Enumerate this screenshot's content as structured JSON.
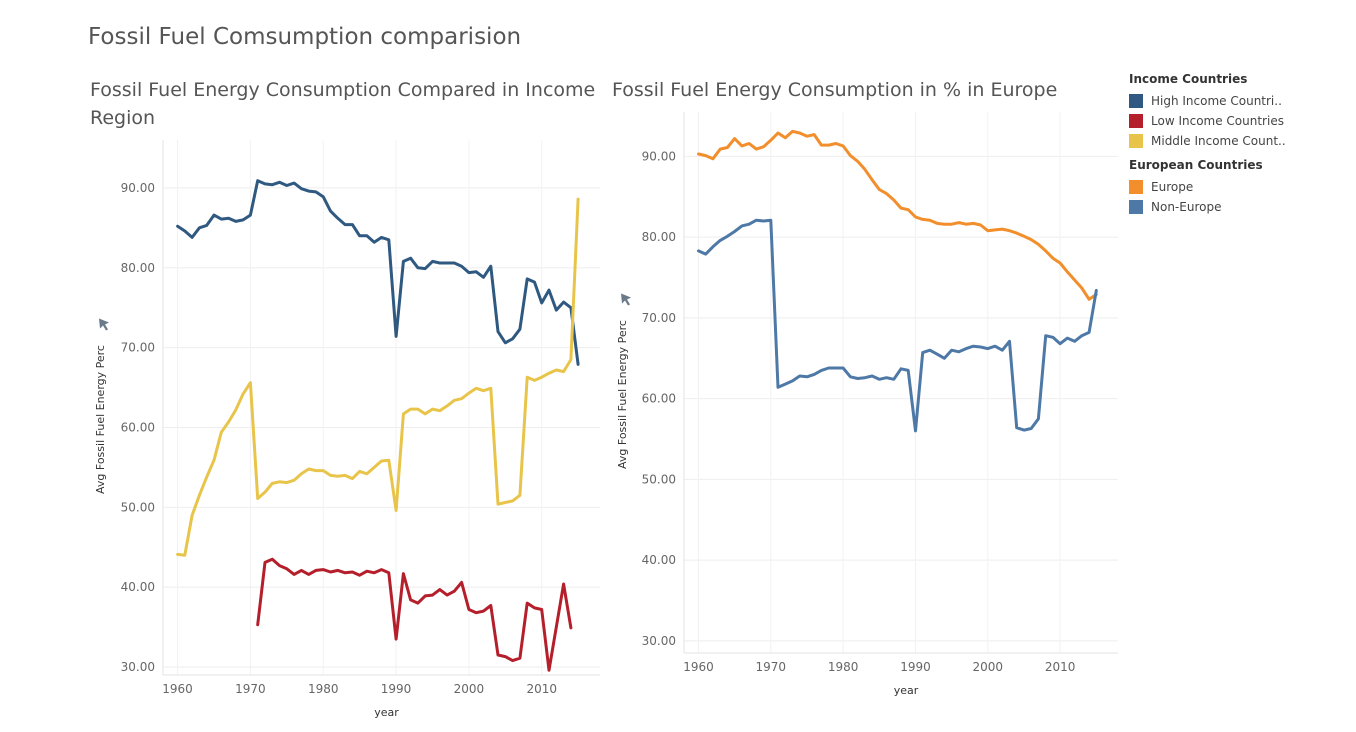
{
  "dashboard_title": "Fossil Fuel Comsumption comparision",
  "legend": {
    "income_title": "Income Countries",
    "income_items": [
      {
        "label": "High Income Countri..",
        "color": "#2f5980"
      },
      {
        "label": "Low Income Countries",
        "color": "#b41f2b"
      },
      {
        "label": "Middle Income Count..",
        "color": "#e8c54a"
      }
    ],
    "europe_title": "European Countries",
    "europe_items": [
      {
        "label": "Europe",
        "color": "#f28e2b"
      },
      {
        "label": "Non-Europe",
        "color": "#4e79a7"
      }
    ]
  },
  "chart_data": [
    {
      "type": "line",
      "title": "Fossil Fuel Energy Consumption Compared in Income Region",
      "xlabel": "year",
      "ylabel": "Avg Fossil Fuel Energy Perc",
      "xlim": [
        1958,
        2018
      ],
      "ylim": [
        29,
        96
      ],
      "xticks": [
        1960,
        1970,
        1980,
        1990,
        2000,
        2010
      ],
      "yticks": [
        30,
        40,
        50,
        60,
        70,
        80,
        90
      ],
      "ytick_labels": [
        "30.00",
        "40.00",
        "50.00",
        "60.00",
        "70.00",
        "80.00",
        "90.00"
      ],
      "grid": true,
      "series": [
        {
          "name": "High Income Countri..",
          "color": "#2f5980",
          "x": [
            1960,
            1961,
            1962,
            1963,
            1964,
            1965,
            1966,
            1967,
            1968,
            1969,
            1970,
            1971,
            1972,
            1973,
            1974,
            1975,
            1976,
            1977,
            1978,
            1979,
            1980,
            1981,
            1982,
            1983,
            1984,
            1985,
            1986,
            1987,
            1988,
            1989,
            1990,
            1991,
            1992,
            1993,
            1994,
            1995,
            1996,
            1997,
            1998,
            1999,
            2000,
            2001,
            2002,
            2003,
            2004,
            2005,
            2006,
            2007,
            2008,
            2009,
            2010,
            2011,
            2012,
            2013,
            2014,
            2015
          ],
          "y": [
            85.2,
            84.6,
            83.8,
            85.0,
            85.3,
            86.6,
            86.1,
            86.2,
            85.8,
            86.0,
            86.6,
            90.9,
            90.5,
            90.4,
            90.7,
            90.3,
            90.6,
            89.9,
            89.6,
            89.5,
            88.9,
            87.1,
            86.2,
            85.4,
            85.4,
            84.0,
            84.0,
            83.2,
            83.8,
            83.5,
            71.4,
            80.8,
            81.2,
            80.0,
            79.9,
            80.8,
            80.6,
            80.6,
            80.6,
            80.2,
            79.4,
            79.5,
            78.8,
            80.2,
            72.0,
            70.6,
            71.1,
            72.3,
            78.6,
            78.2,
            75.6,
            77.2,
            74.7,
            75.7,
            75.0,
            67.9
          ]
        },
        {
          "name": "Low Income Countries",
          "color": "#b41f2b",
          "x": [
            1971,
            1972,
            1973,
            1974,
            1975,
            1976,
            1977,
            1978,
            1979,
            1980,
            1981,
            1982,
            1983,
            1984,
            1985,
            1986,
            1987,
            1988,
            1989,
            1990,
            1991,
            1992,
            1993,
            1994,
            1995,
            1996,
            1997,
            1998,
            1999,
            2000,
            2001,
            2002,
            2003,
            2004,
            2005,
            2006,
            2007,
            2008,
            2009,
            2010,
            2011,
            2012,
            2013,
            2014
          ],
          "y": [
            35.3,
            43.1,
            43.5,
            42.7,
            42.3,
            41.6,
            42.1,
            41.6,
            42.1,
            42.2,
            41.9,
            42.1,
            41.8,
            41.9,
            41.5,
            42.0,
            41.8,
            42.2,
            41.8,
            33.5,
            41.7,
            38.4,
            38.0,
            38.9,
            39.0,
            39.7,
            39.0,
            39.5,
            40.6,
            37.2,
            36.8,
            37.0,
            37.7,
            31.5,
            31.3,
            30.8,
            31.1,
            38.0,
            37.4,
            37.2,
            29.6,
            35.0,
            40.4,
            34.9
          ]
        },
        {
          "name": "Middle Income Count..",
          "color": "#e8c54a",
          "x": [
            1960,
            1961,
            1962,
            1963,
            1964,
            1965,
            1966,
            1967,
            1968,
            1969,
            1970,
            1971,
            1972,
            1973,
            1974,
            1975,
            1976,
            1977,
            1978,
            1979,
            1980,
            1981,
            1982,
            1983,
            1984,
            1985,
            1986,
            1987,
            1988,
            1989,
            1990,
            1991,
            1992,
            1993,
            1994,
            1995,
            1996,
            1997,
            1998,
            1999,
            2000,
            2001,
            2002,
            2003,
            2004,
            2005,
            2006,
            2007,
            2008,
            2009,
            2010,
            2011,
            2012,
            2013,
            2014,
            2015
          ],
          "y": [
            44.1,
            44.0,
            49.0,
            51.5,
            53.8,
            55.9,
            59.4,
            60.7,
            62.2,
            64.2,
            65.6,
            51.1,
            51.9,
            53.0,
            53.2,
            53.1,
            53.4,
            54.2,
            54.8,
            54.6,
            54.6,
            54.0,
            53.9,
            54.0,
            53.6,
            54.5,
            54.2,
            55.0,
            55.8,
            55.9,
            49.6,
            61.7,
            62.3,
            62.3,
            61.7,
            62.3,
            62.1,
            62.7,
            63.4,
            63.6,
            64.3,
            64.9,
            64.6,
            64.9,
            50.4,
            50.6,
            50.8,
            51.5,
            66.3,
            65.9,
            66.3,
            66.8,
            67.2,
            67.0,
            68.5,
            88.6
          ]
        }
      ]
    },
    {
      "type": "line",
      "title": "Fossil Fuel Energy Consumption in % in Europe",
      "xlabel": "year",
      "ylabel": "Avg Fossil Fuel Energy Perc",
      "xlim": [
        1958,
        2018
      ],
      "ylim": [
        28.5,
        95.5
      ],
      "xticks": [
        1960,
        1970,
        1980,
        1990,
        2000,
        2010
      ],
      "yticks": [
        30,
        40,
        50,
        60,
        70,
        80,
        90
      ],
      "ytick_labels": [
        "30.00",
        "40.00",
        "50.00",
        "60.00",
        "70.00",
        "80.00",
        "90.00"
      ],
      "grid": true,
      "series": [
        {
          "name": "Europe",
          "color": "#f28e2b",
          "x": [
            1960,
            1961,
            1962,
            1963,
            1964,
            1965,
            1966,
            1967,
            1968,
            1969,
            1970,
            1971,
            1972,
            1973,
            1974,
            1975,
            1976,
            1977,
            1978,
            1979,
            1980,
            1981,
            1982,
            1983,
            1984,
            1985,
            1986,
            1987,
            1988,
            1989,
            1990,
            1991,
            1992,
            1993,
            1994,
            1995,
            1996,
            1997,
            1998,
            1999,
            2000,
            2001,
            2002,
            2003,
            2004,
            2005,
            2006,
            2007,
            2008,
            2009,
            2010,
            2011,
            2012,
            2013,
            2014,
            2015
          ],
          "y": [
            90.3,
            90.1,
            89.7,
            90.9,
            91.1,
            92.2,
            91.3,
            91.6,
            90.9,
            91.2,
            92.0,
            92.9,
            92.3,
            93.1,
            92.9,
            92.5,
            92.7,
            91.4,
            91.4,
            91.6,
            91.3,
            90.1,
            89.4,
            88.4,
            87.1,
            85.9,
            85.4,
            84.6,
            83.6,
            83.4,
            82.5,
            82.2,
            82.1,
            81.7,
            81.6,
            81.6,
            81.8,
            81.6,
            81.7,
            81.5,
            80.8,
            80.9,
            81.0,
            80.8,
            80.5,
            80.1,
            79.7,
            79.1,
            78.3,
            77.4,
            76.8,
            75.7,
            74.7,
            73.7,
            72.3,
            72.9
          ]
        },
        {
          "name": "Non-Europe",
          "color": "#4e79a7",
          "x": [
            1960,
            1961,
            1962,
            1963,
            1964,
            1965,
            1966,
            1967,
            1968,
            1969,
            1970,
            1971,
            1972,
            1973,
            1974,
            1975,
            1976,
            1977,
            1978,
            1979,
            1980,
            1981,
            1982,
            1983,
            1984,
            1985,
            1986,
            1987,
            1988,
            1989,
            1990,
            1991,
            1992,
            1993,
            1994,
            1995,
            1996,
            1997,
            1998,
            1999,
            2000,
            2001,
            2002,
            2003,
            2004,
            2005,
            2006,
            2007,
            2008,
            2009,
            2010,
            2011,
            2012,
            2013,
            2014,
            2015
          ],
          "y": [
            78.3,
            77.9,
            78.8,
            79.6,
            80.1,
            80.7,
            81.4,
            81.6,
            82.1,
            82.0,
            82.1,
            61.4,
            61.8,
            62.2,
            62.8,
            62.7,
            63.0,
            63.5,
            63.8,
            63.8,
            63.8,
            62.7,
            62.5,
            62.6,
            62.8,
            62.4,
            62.6,
            62.4,
            63.7,
            63.5,
            56.0,
            65.7,
            66.0,
            65.5,
            65.0,
            66.0,
            65.8,
            66.2,
            66.5,
            66.4,
            66.2,
            66.5,
            66.0,
            67.1,
            56.4,
            56.1,
            56.3,
            57.5,
            67.8,
            67.6,
            66.8,
            67.5,
            67.1,
            67.8,
            68.2,
            73.4
          ]
        }
      ]
    }
  ]
}
